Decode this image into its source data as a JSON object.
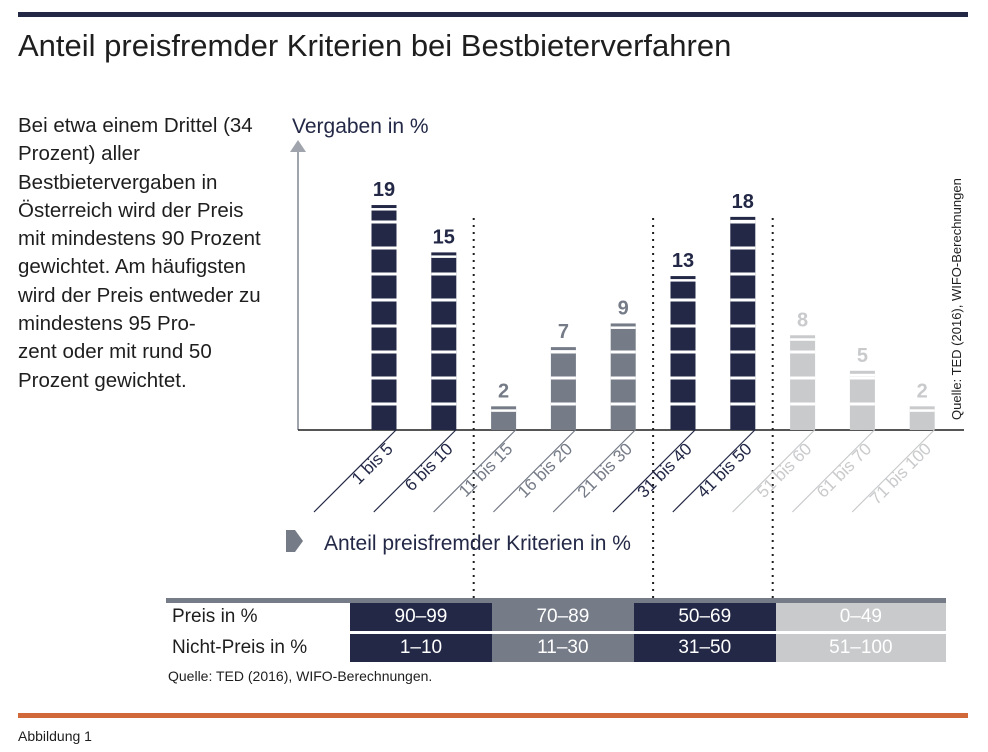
{
  "title": "Anteil preisfremder Kriterien bei Bestbieterverfahren",
  "description": "Bei etwa einem Drittel (34 Prozent) aller Bestbietervergaben in Österreich wird der Preis mit mindestens 90 Prozent gewichtet. Am häufigsten wird der Preis entweder zu mindestens 95 Pro-\nzent oder mit rund 50 Prozent gewichtet.",
  "side_source": "Quelle: TED (2016), WIFO-Berechnungen",
  "footer_source": "Quelle: TED (2016), WIFO-Berechnungen.",
  "figure_label": "Abbildung 1",
  "colors": {
    "dark": "#232846",
    "mid": "#757b87",
    "light": "#c9cacc",
    "accent": "#d0683a"
  },
  "chart_data": {
    "type": "bar",
    "title": "Anteil preisfremder Kriterien bei Bestbieterverfahren",
    "ylabel": "Vergaben in %",
    "xlabel": "Anteil preisfremder Kriterien in %",
    "ylim": [
      0,
      20
    ],
    "categories": [
      "1 bis 5",
      "6 bis 10",
      "11 bis 15",
      "16 bis 20",
      "21 bis 30",
      "31 bis 40",
      "41 bis 50",
      "51 bis 60",
      "61 bis 70",
      "71 bis 100"
    ],
    "values": [
      19,
      15,
      2,
      7,
      9,
      13,
      18,
      8,
      5,
      2
    ],
    "groups": [
      "dark",
      "dark",
      "mid",
      "mid",
      "mid",
      "dark",
      "dark",
      "light",
      "light",
      "light"
    ]
  },
  "legend_table": {
    "row_labels": [
      "Preis in %",
      "Nicht-Preis in %"
    ],
    "columns": [
      {
        "group": "dark",
        "preis": "90–99",
        "nicht_preis": "1–10"
      },
      {
        "group": "mid",
        "preis": "70–89",
        "nicht_preis": "11–30"
      },
      {
        "group": "dark",
        "preis": "50–69",
        "nicht_preis": "31–50"
      },
      {
        "group": "light",
        "preis": "0–49",
        "nicht_preis": "51–100"
      }
    ]
  }
}
